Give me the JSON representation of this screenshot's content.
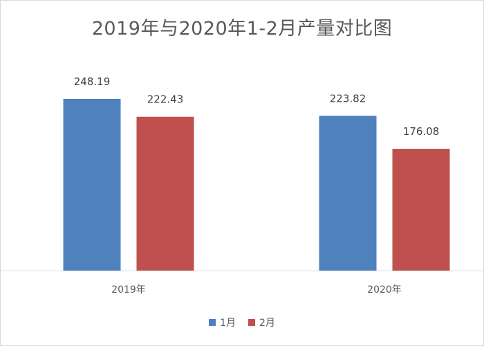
{
  "chart_data": {
    "type": "bar",
    "title": "2019年与2020年1-2月产量对比图",
    "categories": [
      "2019年",
      "2020年"
    ],
    "series": [
      {
        "name": "1月",
        "values": [
          248.19,
          223.82
        ],
        "color": "#4F81BD"
      },
      {
        "name": "2月",
        "values": [
          222.43,
          176.08
        ],
        "color": "#C0504D"
      }
    ],
    "xlabel": "",
    "ylabel": "",
    "ylim": [
      0,
      300
    ],
    "grid": false,
    "legend_position": "bottom",
    "data_labels": true
  }
}
